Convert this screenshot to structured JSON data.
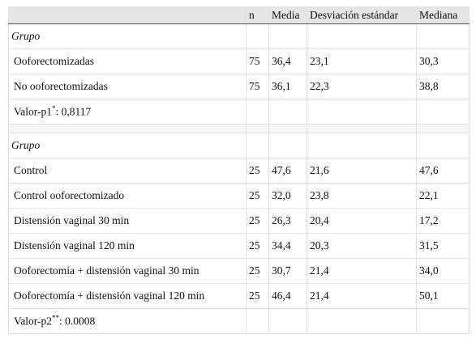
{
  "table": {
    "columns": [
      "n",
      "Media",
      "Desviación estándar",
      "Mediana"
    ],
    "sections": [
      {
        "group": "Grupo",
        "rows": [
          [
            "Ooforectomizadas",
            "75",
            "36,4",
            "23,1",
            "30,3"
          ],
          [
            "No ooforectomizadas",
            "75",
            "36,1",
            "22,3",
            "38,8"
          ]
        ],
        "pvalue": {
          "label": "Valor-p1",
          "mark": "*",
          "text": ": 0,8117"
        }
      },
      {
        "group": "Grupo",
        "rows": [
          [
            "Control",
            "25",
            "47,6",
            "21,6",
            "47,6"
          ],
          [
            "Control ooforectomizado",
            "25",
            "32,0",
            "23,8",
            "22,1"
          ],
          [
            "Distensión vaginal 30 min",
            "25",
            "26,3",
            "20,4",
            "17,2"
          ],
          [
            "Distensión vaginal 120 min",
            "25",
            "34,4",
            "20,3",
            "31,5"
          ],
          [
            "Ooforectomía + distensión vaginal 30 min",
            "25",
            "30,7",
            "21,4",
            "34,0"
          ],
          [
            "Ooforectomía + distensión vaginal 120 min",
            "25",
            "46,4",
            "21,4",
            "50,1"
          ]
        ],
        "pvalue": {
          "label": "Valor-p2",
          "mark": "**",
          "text": ": 0.0008"
        }
      }
    ]
  }
}
